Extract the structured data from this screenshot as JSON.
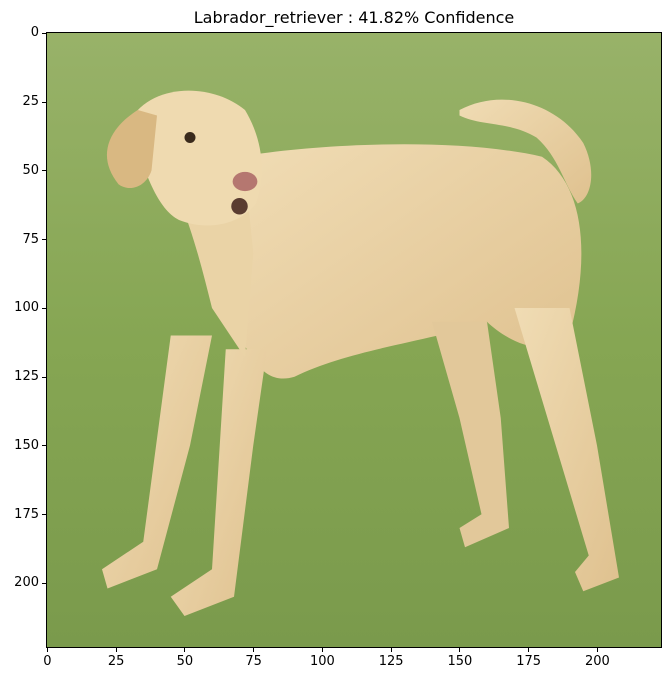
{
  "title": "Labrador_retriever : 41.82% Confidence",
  "image": {
    "description_icon": "labrador-dog-photo"
  },
  "x_axis": {
    "ticks": [
      0,
      25,
      50,
      75,
      100,
      125,
      150,
      175,
      200
    ],
    "range": [
      -0.5,
      223.5
    ]
  },
  "y_axis": {
    "ticks": [
      0,
      25,
      50,
      75,
      100,
      125,
      150,
      175,
      200
    ],
    "range": [
      223.5,
      -0.5
    ],
    "inverted": true
  },
  "colors": {
    "grass": "#8aa957",
    "dog": "#e8cfa0"
  }
}
